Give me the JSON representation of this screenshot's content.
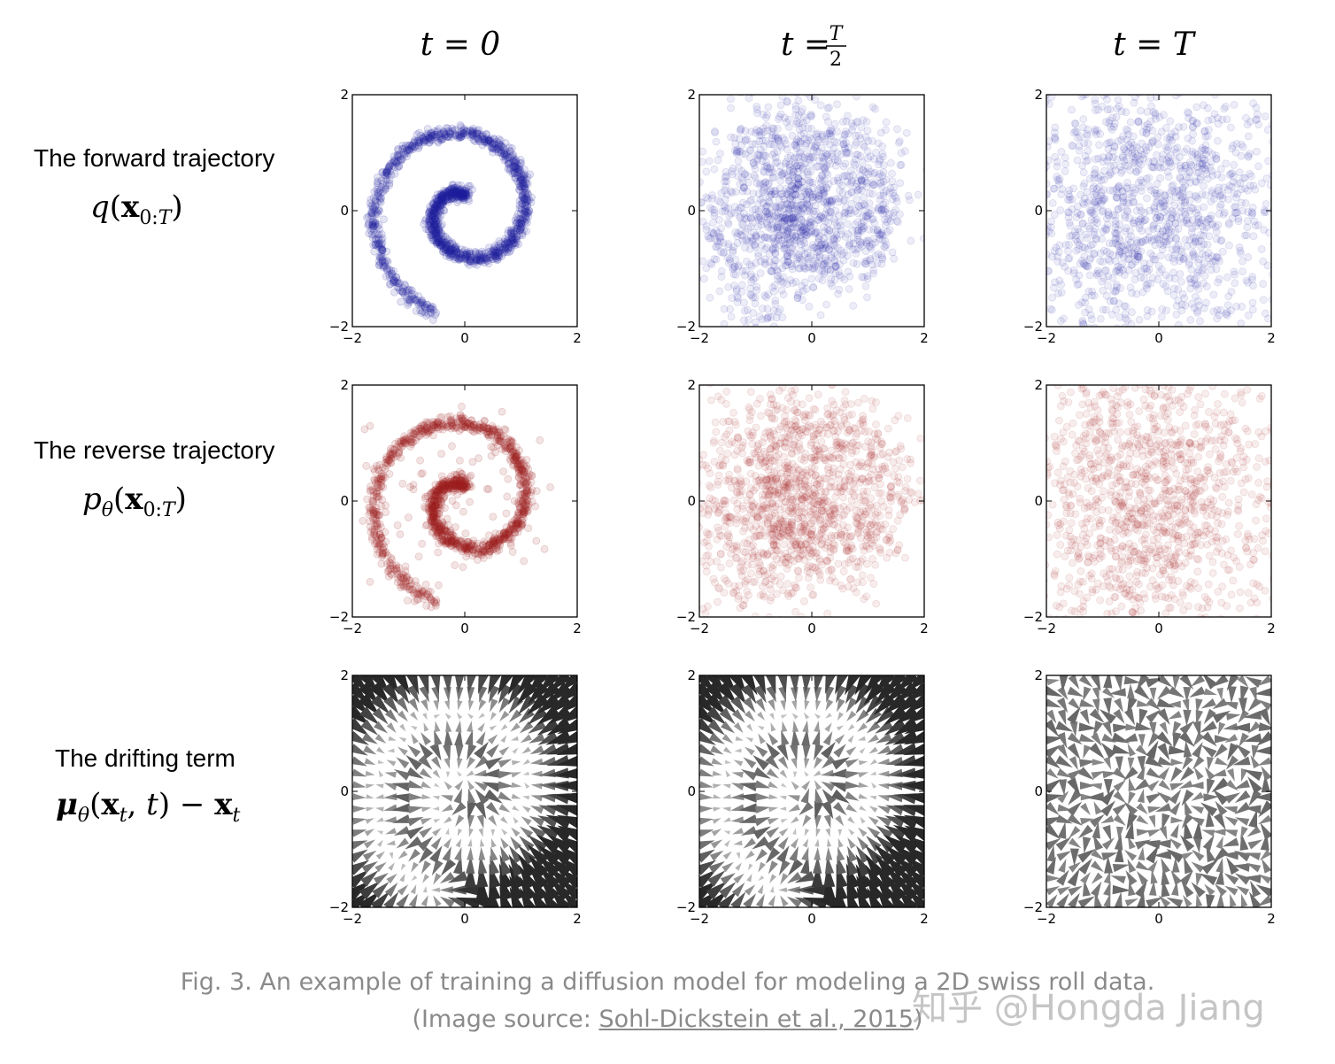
{
  "chart_data": {
    "type": "scatter",
    "columns": [
      "t = 0",
      "t = T/2",
      "t = T"
    ],
    "rows": [
      {
        "label": "The forward trajectory",
        "formula": "q(x0:T)",
        "color": "#1f1fa0",
        "kind": "scatter"
      },
      {
        "label": "The reverse trajectory",
        "formula": "pθ(x0:T)",
        "color": "#a01f1f",
        "kind": "scatter"
      },
      {
        "label": "The drifting term",
        "formula": "μθ(xt, t) − xt",
        "color": "#222222",
        "kind": "quiver"
      }
    ],
    "axes": {
      "xlim": [
        -2,
        2
      ],
      "ylim": [
        -2,
        2
      ],
      "xticks": [
        "−2",
        "0",
        "2"
      ],
      "yticks": [
        "−2",
        "0",
        "2"
      ]
    },
    "spiral": {
      "theta_start": 1.5,
      "theta_end": 10.7,
      "radius_scale": 0.17
    },
    "noise_std": {
      "forward": [
        0.06,
        0.38,
        1.5
      ],
      "reverse": [
        0.06,
        0.45,
        1.0
      ]
    },
    "drift_strength": [
      1.0,
      1.0,
      0.35
    ]
  },
  "caption": {
    "line1": "Fig. 3. An example of training a diffusion model for modeling a 2D swiss roll data.",
    "line2_prefix": "(Image source: ",
    "link_text": "Sohl-Dickstein et al., 2015",
    "line2_suffix": ")"
  },
  "watermark": "知乎 @Hongda Jiang"
}
